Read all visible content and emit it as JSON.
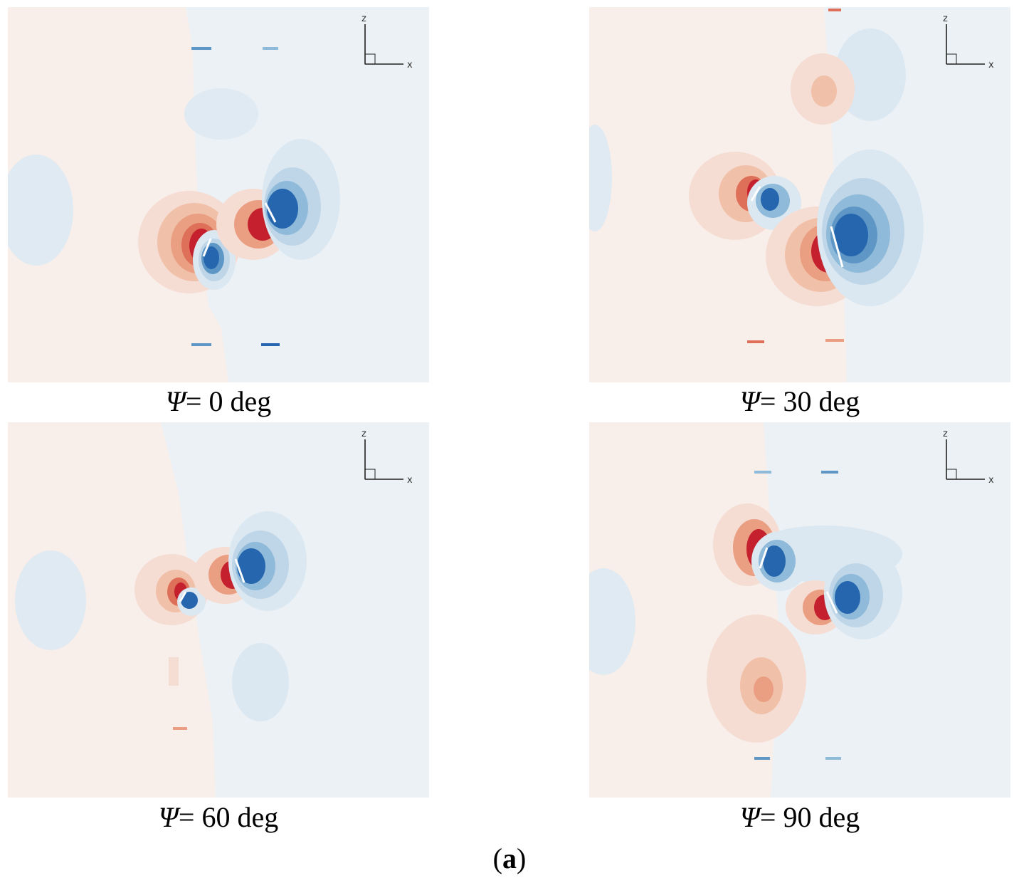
{
  "panels": [
    {
      "symbol": "Ψ",
      "value": "= 0 deg"
    },
    {
      "symbol": "Ψ",
      "value": "= 30 deg"
    },
    {
      "symbol": "Ψ",
      "value": "= 60 deg"
    },
    {
      "symbol": "Ψ",
      "value": "= 90 deg"
    }
  ],
  "axis_labels": {
    "vertical": "z",
    "horizontal": "x"
  },
  "figure_label": {
    "open": "(",
    "letter": "a",
    "close": ")"
  },
  "colors": {
    "background_left": "#f8eeea",
    "background_right": "#ecf1f5",
    "red_levels": [
      "#f5ddd3",
      "#f1c0a9",
      "#ea9f83",
      "#de6f58",
      "#c4202d"
    ],
    "blue_levels": [
      "#dbe8f1",
      "#bfd6e8",
      "#8fbad9",
      "#5e97c6",
      "#2566ae"
    ]
  }
}
